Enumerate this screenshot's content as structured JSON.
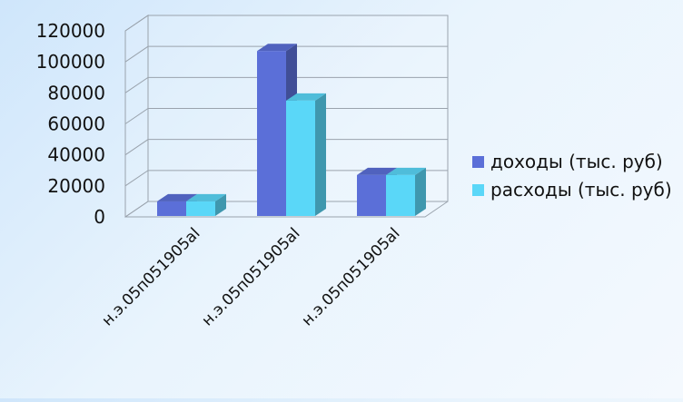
{
  "chart_data": {
    "type": "bar",
    "title": "",
    "xlabel": "",
    "ylabel": "",
    "categories": [
      "н.э.05п051905аl",
      "н.э.05п051905аl",
      "н.э.05п051905аl"
    ],
    "series": [
      {
        "name": "доходы (тыс. руб)",
        "values": [
          10000,
          107000,
          27000
        ],
        "color": "#5b6fd8"
      },
      {
        "name": "расходы (тыс. руб)",
        "values": [
          10000,
          75000,
          27000
        ],
        "color": "#5ad7f8"
      }
    ],
    "ylim": [
      0,
      120000
    ],
    "y_ticks": [
      "0",
      "20000",
      "40000",
      "60000",
      "80000",
      "100000",
      "120000"
    ],
    "grid": true,
    "three_d": true,
    "legend_position": "right"
  }
}
